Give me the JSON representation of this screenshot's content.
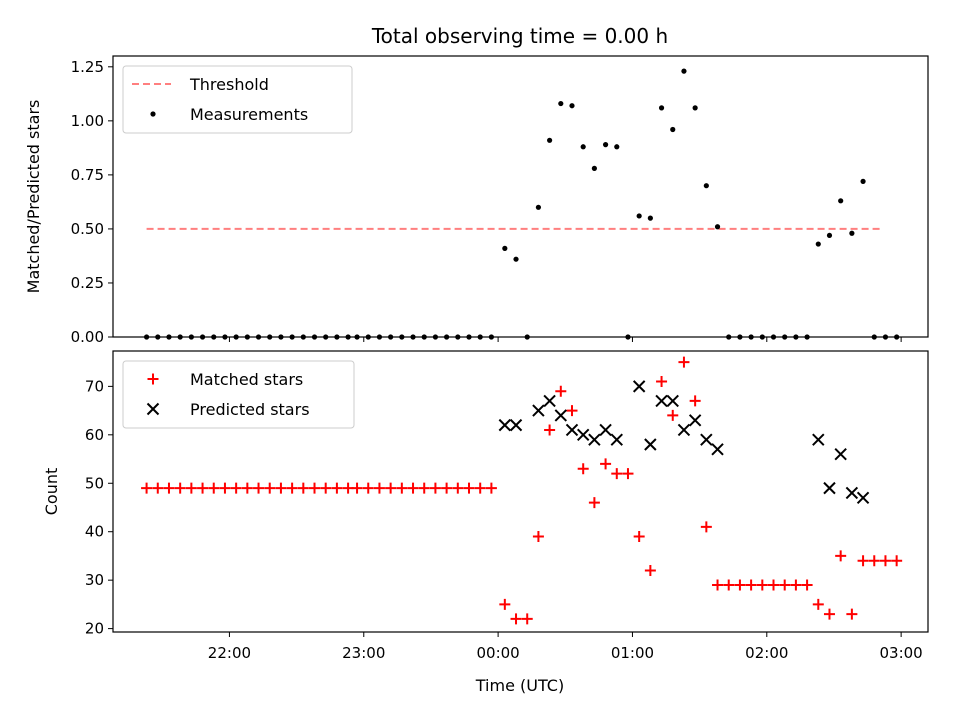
{
  "chart_data": {
    "title": "Total observing time = 0.00 h",
    "xlabel": "Time (UTC)",
    "xticks": [
      "22:00",
      "23:00",
      "00:00",
      "01:00",
      "02:00",
      "03:00"
    ],
    "xlim_minutes_from_2200": [
      -52,
      312
    ],
    "colors": {
      "threshold": "#ff7f7f",
      "measurements": "#000000",
      "matched": "#ff0000",
      "predicted": "#000000"
    },
    "panels": [
      {
        "type": "scatter",
        "ylabel": "Matched/Predicted stars",
        "ylim": [
          0,
          1.3
        ],
        "yticks": [
          "0.00",
          "0.25",
          "0.50",
          "0.75",
          "1.00",
          "1.25"
        ],
        "yticks_values": [
          0,
          0.25,
          0.5,
          0.75,
          1.0,
          1.25
        ],
        "legend": [
          "Threshold",
          "Measurements"
        ],
        "legend_position": "upper-left",
        "threshold": {
          "value": 0.5,
          "x_from": -37,
          "x_to": 292
        },
        "measurements": [
          [
            -37,
            0
          ],
          [
            -32,
            0
          ],
          [
            -27,
            0
          ],
          [
            -22,
            0
          ],
          [
            -17,
            0
          ],
          [
            -12,
            0
          ],
          [
            -7,
            0
          ],
          [
            -2,
            0
          ],
          [
            3,
            0
          ],
          [
            8,
            0
          ],
          [
            13,
            0
          ],
          [
            18,
            0
          ],
          [
            23,
            0
          ],
          [
            28,
            0
          ],
          [
            33,
            0
          ],
          [
            38,
            0
          ],
          [
            43,
            0
          ],
          [
            48,
            0
          ],
          [
            53,
            0
          ],
          [
            57,
            0
          ],
          [
            62,
            0
          ],
          [
            67,
            0
          ],
          [
            72,
            0
          ],
          [
            77,
            0
          ],
          [
            82,
            0
          ],
          [
            87,
            0
          ],
          [
            92,
            0
          ],
          [
            97,
            0
          ],
          [
            102,
            0
          ],
          [
            107,
            0
          ],
          [
            112,
            0
          ],
          [
            117,
            0
          ],
          [
            123,
            0.41
          ],
          [
            128,
            0.36
          ],
          [
            133,
            0
          ],
          [
            138,
            0.6
          ],
          [
            143,
            0.91
          ],
          [
            148,
            1.08
          ],
          [
            153,
            1.07
          ],
          [
            158,
            0.88
          ],
          [
            163,
            0.78
          ],
          [
            168,
            0.89
          ],
          [
            173,
            0.88
          ],
          [
            178,
            0
          ],
          [
            183,
            0.56
          ],
          [
            188,
            0.55
          ],
          [
            193,
            1.06
          ],
          [
            198,
            0.96
          ],
          [
            203,
            1.23
          ],
          [
            208,
            1.06
          ],
          [
            213,
            0.7
          ],
          [
            218,
            0.51
          ],
          [
            223,
            0
          ],
          [
            228,
            0
          ],
          [
            233,
            0
          ],
          [
            238,
            0
          ],
          [
            243,
            0
          ],
          [
            248,
            0
          ],
          [
            253,
            0
          ],
          [
            258,
            0
          ],
          [
            263,
            0.43
          ],
          [
            268,
            0.47
          ],
          [
            273,
            0.63
          ],
          [
            278,
            0.48
          ],
          [
            283,
            0.72
          ],
          [
            288,
            0
          ],
          [
            293,
            0
          ],
          [
            298,
            0
          ]
        ]
      },
      {
        "type": "scatter",
        "ylabel": "Count",
        "ylim": [
          19.3,
          77.3
        ],
        "yticks": [
          "20",
          "30",
          "40",
          "50",
          "60",
          "70"
        ],
        "yticks_values": [
          20,
          30,
          40,
          50,
          60,
          70
        ],
        "legend": [
          "Matched stars",
          "Predicted stars"
        ],
        "legend_position": "upper-left",
        "matched": [
          [
            -37,
            49
          ],
          [
            -32,
            49
          ],
          [
            -27,
            49
          ],
          [
            -22,
            49
          ],
          [
            -17,
            49
          ],
          [
            -12,
            49
          ],
          [
            -7,
            49
          ],
          [
            -2,
            49
          ],
          [
            3,
            49
          ],
          [
            8,
            49
          ],
          [
            13,
            49
          ],
          [
            18,
            49
          ],
          [
            23,
            49
          ],
          [
            28,
            49
          ],
          [
            33,
            49
          ],
          [
            38,
            49
          ],
          [
            43,
            49
          ],
          [
            48,
            49
          ],
          [
            53,
            49
          ],
          [
            57,
            49
          ],
          [
            62,
            49
          ],
          [
            67,
            49
          ],
          [
            72,
            49
          ],
          [
            77,
            49
          ],
          [
            82,
            49
          ],
          [
            87,
            49
          ],
          [
            92,
            49
          ],
          [
            97,
            49
          ],
          [
            102,
            49
          ],
          [
            107,
            49
          ],
          [
            112,
            49
          ],
          [
            117,
            49
          ],
          [
            123,
            25
          ],
          [
            128,
            22
          ],
          [
            133,
            22
          ],
          [
            138,
            39
          ],
          [
            143,
            61
          ],
          [
            148,
            69
          ],
          [
            153,
            65
          ],
          [
            158,
            53
          ],
          [
            163,
            46
          ],
          [
            168,
            54
          ],
          [
            173,
            52
          ],
          [
            178,
            52
          ],
          [
            183,
            39
          ],
          [
            188,
            32
          ],
          [
            193,
            71
          ],
          [
            198,
            64
          ],
          [
            203,
            75
          ],
          [
            208,
            67
          ],
          [
            213,
            41
          ],
          [
            218,
            29
          ],
          [
            223,
            29
          ],
          [
            228,
            29
          ],
          [
            233,
            29
          ],
          [
            238,
            29
          ],
          [
            243,
            29
          ],
          [
            248,
            29
          ],
          [
            253,
            29
          ],
          [
            258,
            29
          ],
          [
            263,
            25
          ],
          [
            268,
            23
          ],
          [
            273,
            35
          ],
          [
            278,
            23
          ],
          [
            283,
            34
          ],
          [
            288,
            34
          ],
          [
            293,
            34
          ],
          [
            298,
            34
          ]
        ],
        "predicted": [
          [
            123,
            62
          ],
          [
            128,
            62
          ],
          [
            138,
            65
          ],
          [
            143,
            67
          ],
          [
            148,
            64
          ],
          [
            153,
            61
          ],
          [
            158,
            60
          ],
          [
            163,
            59
          ],
          [
            168,
            61
          ],
          [
            173,
            59
          ],
          [
            183,
            70
          ],
          [
            188,
            58
          ],
          [
            193,
            67
          ],
          [
            198,
            67
          ],
          [
            203,
            61
          ],
          [
            208,
            63
          ],
          [
            213,
            59
          ],
          [
            218,
            57
          ],
          [
            263,
            59
          ],
          [
            268,
            49
          ],
          [
            273,
            56
          ],
          [
            278,
            48
          ],
          [
            283,
            47
          ]
        ]
      }
    ]
  }
}
